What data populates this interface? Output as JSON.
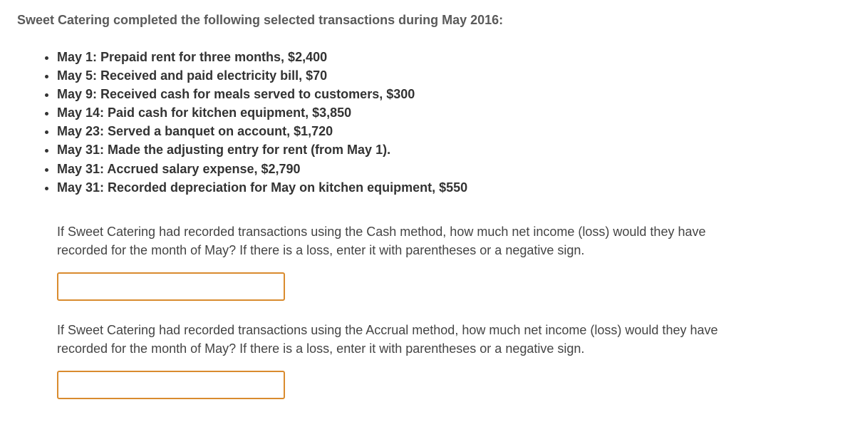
{
  "heading": "Sweet Catering completed the following selected transactions during May 2016:",
  "transactions": [
    "May 1: Prepaid rent for three months, $2,400",
    "May 5: Received and paid electricity bill, $70",
    "May 9: Received cash for meals served to customers, $300",
    "May 14: Paid cash for kitchen equipment, $3,850",
    "May 23: Served a banquet on account, $1,720",
    "May 31: Made the adjusting entry for rent (from May 1).",
    "May 31: Accrued salary expense, $2,790",
    "May 31: Recorded depreciation for May on kitchen equipment, $550"
  ],
  "questions": [
    {
      "prompt": "If Sweet Catering had recorded transactions using the Cash method, how much net income (loss) would they have recorded for the month of May? If there is a loss, enter it with parentheses or a negative sign.",
      "value": ""
    },
    {
      "prompt": "If Sweet Catering had recorded transactions using the Accrual method, how much net income (loss) would they have recorded for the month of May? If there is a loss, enter it with parentheses or a negative sign.",
      "value": ""
    }
  ],
  "style": {
    "heading_color": "#5a5a5a",
    "text_color": "#333333",
    "question_color": "#444444",
    "input_border_color": "#d98b2e",
    "background_color": "#ffffff",
    "heading_fontsize": 18,
    "list_fontsize": 18,
    "question_fontsize": 18
  }
}
